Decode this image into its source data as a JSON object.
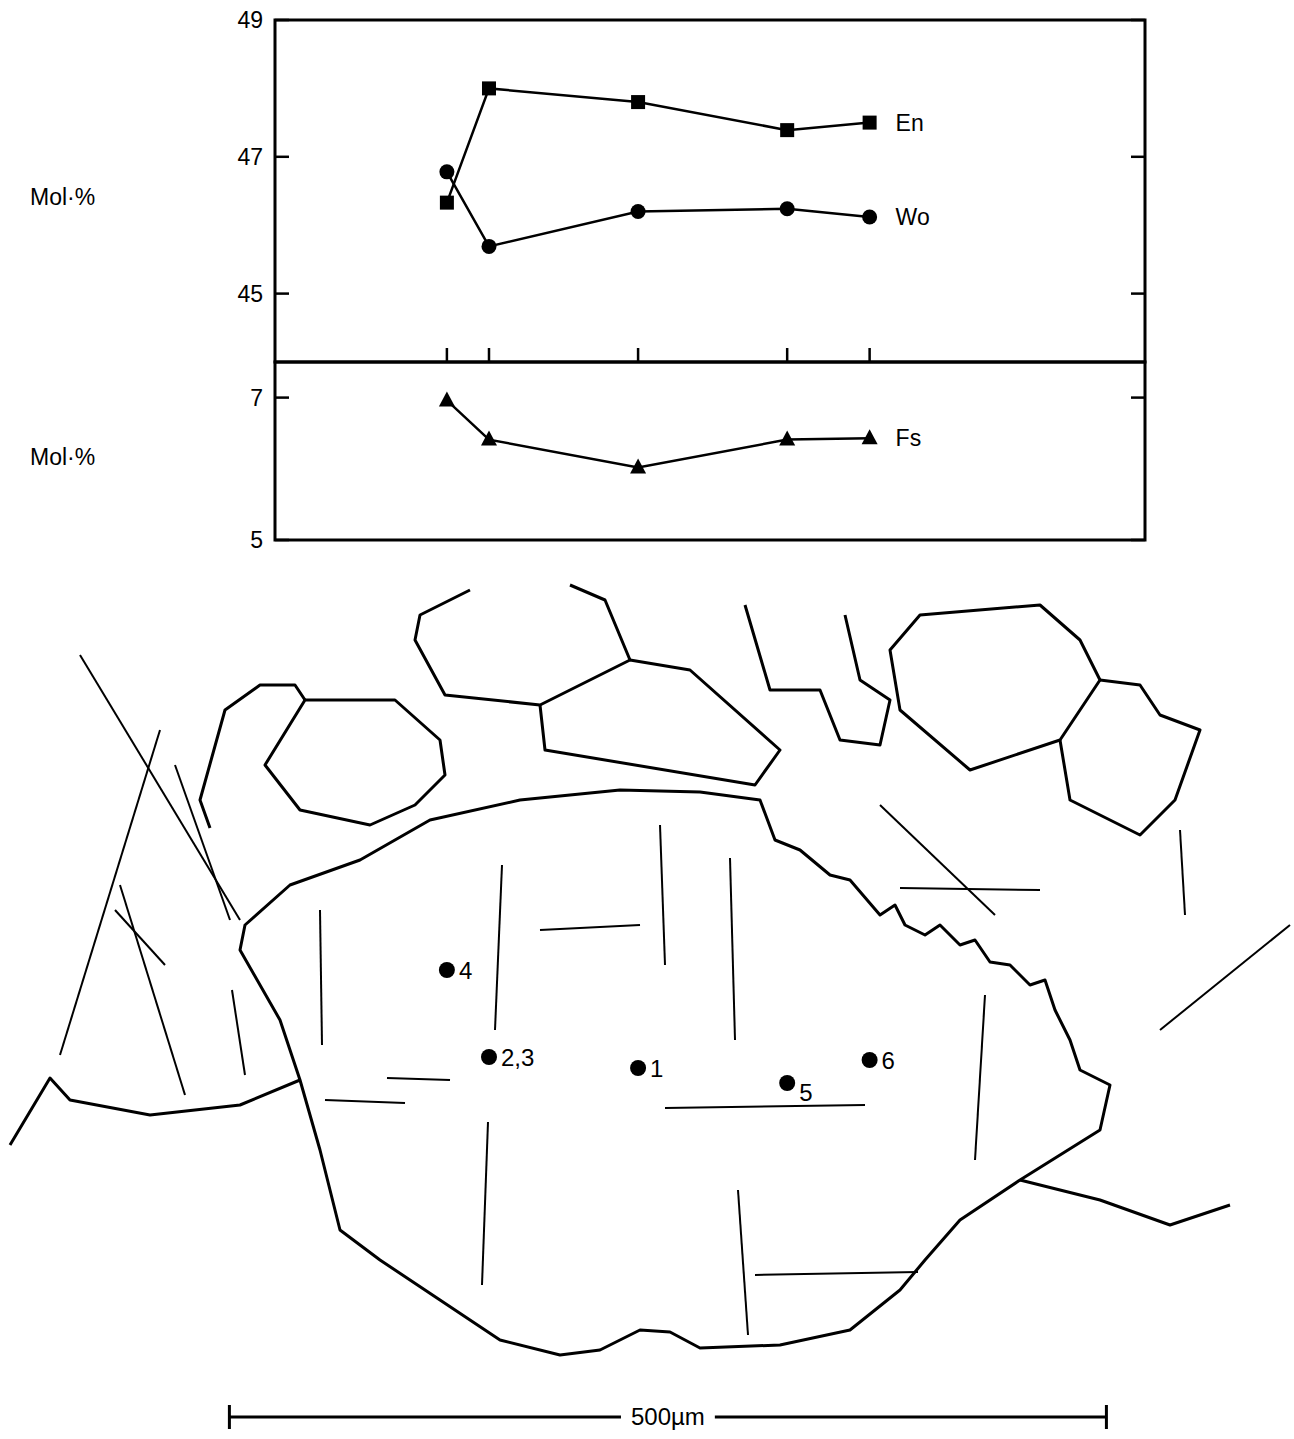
{
  "chart_data": [
    {
      "type": "line",
      "y_label": "Mol·%",
      "xlim": [
        26,
        522
      ],
      "xticks": [
        124,
        148,
        233,
        318,
        365
      ],
      "ylim": [
        44,
        49
      ],
      "yticks": [
        45,
        47,
        49
      ],
      "tick_labels": "y",
      "grid": false,
      "x": [
        124,
        148,
        233,
        318,
        365
      ],
      "series": [
        {
          "name": "En",
          "color": "#000000",
          "marker": "square",
          "line_style": "solid",
          "values": [
            46.33,
            48.0,
            47.8,
            47.39,
            47.5
          ]
        },
        {
          "name": "Wo",
          "color": "#000000",
          "marker": "circle",
          "line_style": "solid",
          "values": [
            46.78,
            45.69,
            46.2,
            46.24,
            46.12
          ]
        }
      ]
    },
    {
      "type": "line",
      "y_label": "Mol·%",
      "xlim": [
        26,
        522
      ],
      "ylim": [
        5,
        7.5
      ],
      "yticks": [
        5,
        7
      ],
      "tick_labels": "y",
      "grid": false,
      "x": [
        124,
        148,
        233,
        318,
        365
      ],
      "series": [
        {
          "name": "Fs",
          "color": "#000000",
          "marker": "triangle",
          "line_style": "solid",
          "values": [
            6.96,
            6.41,
            6.02,
            6.41,
            6.43
          ]
        }
      ]
    }
  ],
  "sketch": {
    "points": [
      {
        "label": "4",
        "x": 124
      },
      {
        "label": "2,3",
        "x": 148
      },
      {
        "label": "1",
        "x": 233
      },
      {
        "label": "5",
        "x": 318
      },
      {
        "label": "6",
        "x": 365
      }
    ],
    "scale_bar": {
      "label": "500µm",
      "length": 500
    }
  }
}
